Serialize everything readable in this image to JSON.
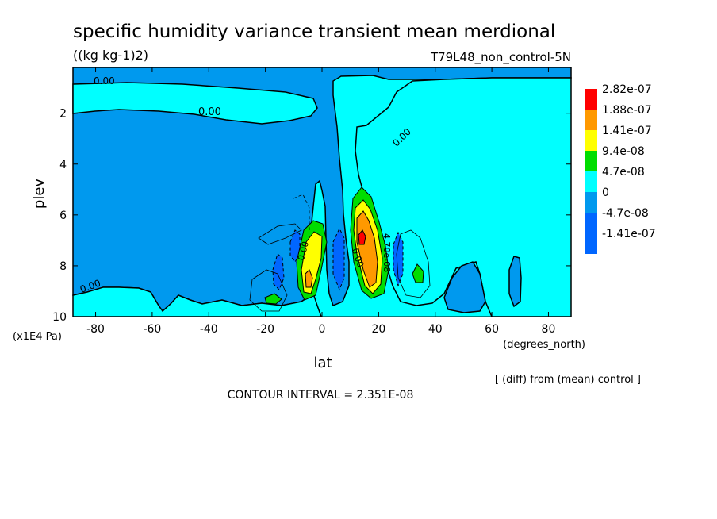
{
  "chart_data": {
    "type": "contour",
    "title": "specific humidity variance transient mean merdional",
    "units": "((kg kg-1)2)",
    "run_label": "T79L48_non_control-5N",
    "xlabel": "lat",
    "x_units": "(degrees_north)",
    "ylabel": "plev",
    "y_units": "(x1E4 Pa)",
    "xlim": [
      -88,
      88
    ],
    "ylim": [
      10,
      0.2
    ],
    "x_ticks": [
      {
        "value": -80,
        "label": "-80"
      },
      {
        "value": -60,
        "label": "-60"
      },
      {
        "value": -40,
        "label": "-40"
      },
      {
        "value": -20,
        "label": "-20"
      },
      {
        "value": 0,
        "label": "0"
      },
      {
        "value": 20,
        "label": "20"
      },
      {
        "value": 40,
        "label": "40"
      },
      {
        "value": 60,
        "label": "60"
      },
      {
        "value": 80,
        "label": "80"
      }
    ],
    "y_ticks": [
      {
        "value": 2,
        "label": "2"
      },
      {
        "value": 4,
        "label": "4"
      },
      {
        "value": 6,
        "label": "6"
      },
      {
        "value": 8,
        "label": "8"
      },
      {
        "value": 10,
        "label": "10"
      }
    ],
    "legend": [
      {
        "label": "2.82e-07",
        "color": "#ff0000"
      },
      {
        "label": "1.88e-07",
        "color": "#ff9900"
      },
      {
        "label": "1.41e-07",
        "color": "#ffff00"
      },
      {
        "label": "9.4e-08",
        "color": "#00dd00"
      },
      {
        "label": "4.7e-08",
        "color": "#00ffff"
      },
      {
        "label": "0",
        "color": "#0099ee"
      },
      {
        "label": "-4.7e-08",
        "color": "#0066ff"
      },
      {
        "label": "-1.41e-07",
        "color": "#0066ff"
      }
    ],
    "contour_labels": [
      {
        "text": "0.00",
        "lat": -80,
        "plev": 0.6
      },
      {
        "text": "0.00",
        "lat": -40,
        "plev": 1.8
      },
      {
        "text": "0.00",
        "lat": 29,
        "plev": 2.3
      },
      {
        "text": "0.00",
        "lat": -85,
        "plev": 8.6
      },
      {
        "text": "0.00",
        "lat": -7,
        "plev": 7.6
      },
      {
        "text": "0.00",
        "lat": 10,
        "plev": 8.1
      },
      {
        "text": "4.70e-08",
        "lat": 19,
        "plev": 7.4
      }
    ],
    "contour_interval_text": "CONTOUR INTERVAL = 2.351E-08",
    "note": "[ (diff) from (mean) control ]"
  },
  "colors": {
    "positive_bg": "#00ffff",
    "negative": "#0099ee",
    "strong_negative": "#0066ff",
    "level1": "#00dd00",
    "level2": "#ffff00",
    "level3": "#ff9900",
    "level4": "#ff0000"
  }
}
